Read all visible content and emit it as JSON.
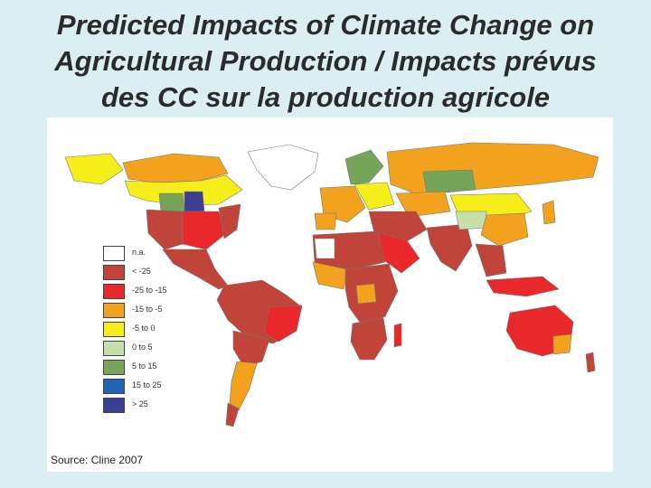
{
  "title": {
    "line1": "Predicted Impacts of Climate Change on",
    "line2": "Agricultural Production / Impacts prévus",
    "line3": "des CC sur la production agricole"
  },
  "legend": [
    {
      "label": "n.a.",
      "color": "#ffffff"
    },
    {
      "label": "< -25",
      "color": "#c0443a"
    },
    {
      "label": "-25 to -15",
      "color": "#e8282a"
    },
    {
      "label": "-15 to -5",
      "color": "#f2a21c"
    },
    {
      "label": "-5 to 0",
      "color": "#f6ee1a"
    },
    {
      "label": "0 to 5",
      "color": "#c6dfa8"
    },
    {
      "label": "5 to 15",
      "color": "#76a458"
    },
    {
      "label": "15 to 25",
      "color": "#2164b4"
    },
    {
      "label": "> 25",
      "color": "#3b3f94"
    }
  ],
  "source": "Source: Cline 2007"
}
